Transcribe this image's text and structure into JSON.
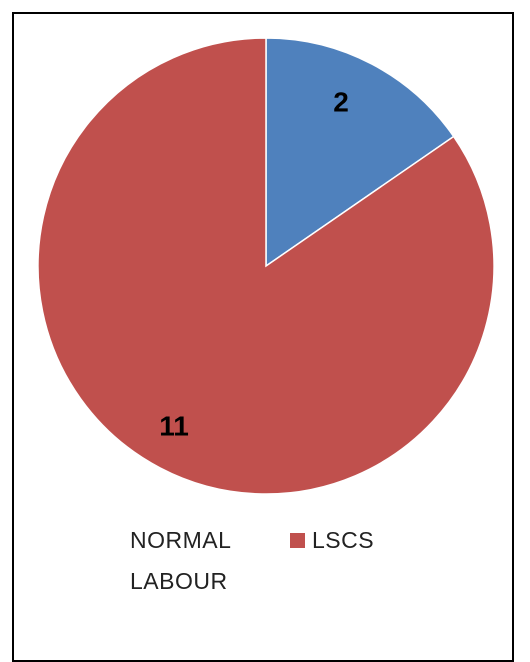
{
  "chart_data": {
    "type": "pie",
    "categories": [
      "NORMAL LABOUR",
      "LSCS"
    ],
    "values": [
      2,
      11
    ],
    "data_labels": [
      "2",
      "11"
    ],
    "colors": [
      "#4f81bd",
      "#c0504d"
    ],
    "legend": {
      "placement": "bottom",
      "items": [
        {
          "label_line1": "NORMAL",
          "label_line2": "LABOUR",
          "color": "#4f81bd"
        },
        {
          "label_line1": "LSCS",
          "label_line2": "",
          "color": "#c0504d"
        }
      ]
    },
    "start_angle": "top",
    "direction": "clockwise"
  }
}
